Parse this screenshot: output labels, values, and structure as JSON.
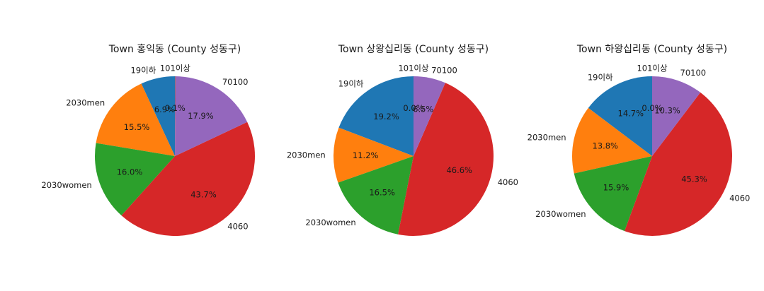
{
  "chart_data": [
    {
      "type": "pie",
      "title": "Town 홍익동 (County 성동구)",
      "categories": [
        "19이하",
        "2030men",
        "2030women",
        "4060",
        "70100",
        "101이상"
      ],
      "values": [
        6.9,
        15.5,
        16.0,
        43.7,
        17.9,
        0.1
      ],
      "percent_labels": [
        "6.9%",
        "15.5%",
        "16.0%",
        "43.7%",
        "17.9%",
        "0.1%"
      ],
      "start_angle_deg": 90,
      "direction": "counterclockwise"
    },
    {
      "type": "pie",
      "title": "Town 상왕십리동 (County 성동구)",
      "categories": [
        "19이하",
        "2030men",
        "2030women",
        "4060",
        "70100",
        "101이상"
      ],
      "values": [
        19.2,
        11.2,
        16.5,
        46.6,
        6.5,
        0.0
      ],
      "percent_labels": [
        "19.2%",
        "11.2%",
        "16.5%",
        "46.6%",
        "6.5%",
        "0.0%"
      ],
      "start_angle_deg": 90,
      "direction": "counterclockwise"
    },
    {
      "type": "pie",
      "title": "Town 하왕십리동 (County 성동구)",
      "categories": [
        "19이하",
        "2030men",
        "2030women",
        "4060",
        "70100",
        "101이상"
      ],
      "values": [
        14.7,
        13.8,
        15.9,
        45.3,
        10.3,
        0.0
      ],
      "percent_labels": [
        "14.7%",
        "13.8%",
        "15.9%",
        "45.3%",
        "10.3%",
        "0.0%"
      ],
      "start_angle_deg": 90,
      "direction": "counterclockwise"
    }
  ],
  "colors": [
    "#1f77b4",
    "#ff7f0e",
    "#2ca02c",
    "#d62728",
    "#9467bd",
    "#8c564b"
  ]
}
